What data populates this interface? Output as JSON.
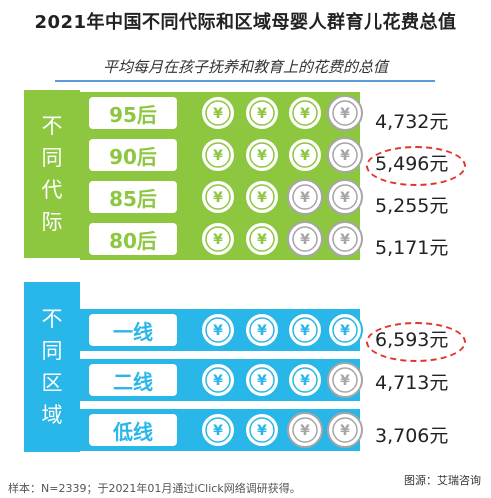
{
  "title": "2021年中国不同代际和区域母婴人群育儿花费总值",
  "subtitle": "平均每月在孩子抚养和教育上的花费的总值",
  "groups": {
    "generation_label": [
      "不",
      "同",
      "代",
      "际"
    ],
    "region_label": [
      "不",
      "同",
      "区",
      "域"
    ]
  },
  "coin_symbol": "¥",
  "colors": {
    "generation": "#8dc63f",
    "region": "#29b6e8",
    "coin_grey": "#a6a6a6",
    "highlight": "#e5332a"
  },
  "chart_data": [
    {
      "type": "bar",
      "title": "不同代际",
      "categories": [
        "95后",
        "90后",
        "85后",
        "80后"
      ],
      "values": [
        4732,
        5496,
        5255,
        5171
      ],
      "value_labels": [
        "4,732元",
        "5,496元",
        "5,255元",
        "5,171元"
      ],
      "coin_fill": [
        3,
        3,
        2,
        2
      ],
      "coin_total": 4,
      "highlighted": "90后"
    },
    {
      "type": "bar",
      "title": "不同区域",
      "categories": [
        "一线",
        "二线",
        "低线"
      ],
      "values": [
        6593,
        4713,
        3706
      ],
      "value_labels": [
        "6,593元",
        "4,713元",
        "3,706元"
      ],
      "coin_fill": [
        4,
        3,
        2
      ],
      "coin_total": 4,
      "highlighted": "一线"
    }
  ],
  "footnote": "样本：N=2339；于2021年01月通过iClick网络调研获得。",
  "source": "图源：艾瑞咨询"
}
